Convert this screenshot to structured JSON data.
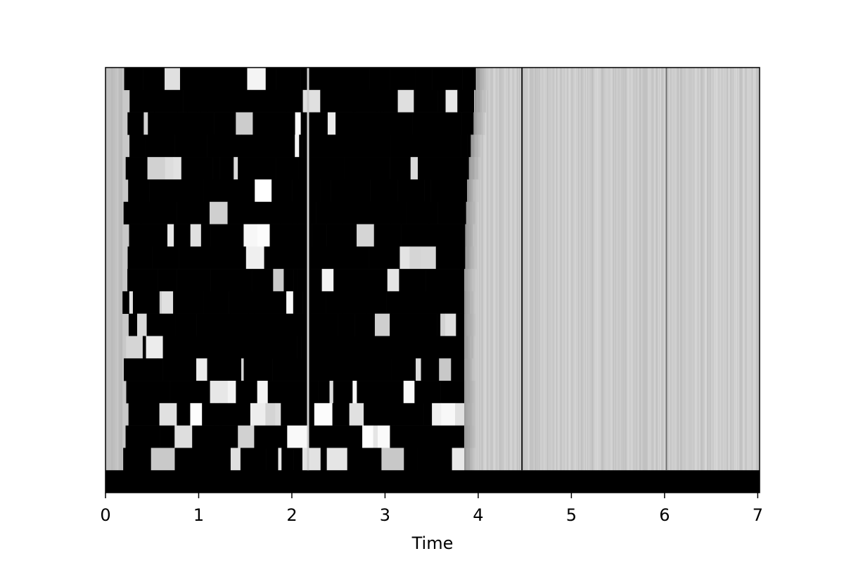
{
  "chart_data": {
    "type": "heatmap",
    "colormap": "grayscale (black = high, white/light gray = low)",
    "xlabel": "Time",
    "ylabel": "",
    "title": "",
    "xlim": [
      0,
      7.02
    ],
    "xticks": [
      "0",
      "1",
      "2",
      "3",
      "4",
      "5",
      "6",
      "7"
    ],
    "n_rows": 19,
    "y_ticks_shown": false,
    "bottom_row_value": "black across the full time range",
    "active_region": [
      0.18,
      3.85
    ],
    "silent_region_gray": [
      3.85,
      7.02
    ],
    "dark_vertical_lines_at": [
      2.17,
      4.47,
      6.02
    ],
    "row_activity_end_times": [
      3.98,
      3.96,
      3.95,
      3.92,
      3.9,
      3.88,
      3.87,
      3.86,
      3.86,
      3.85,
      3.85,
      3.85,
      3.85,
      3.85,
      3.85,
      3.85,
      3.85,
      3.85,
      3.85
    ]
  }
}
